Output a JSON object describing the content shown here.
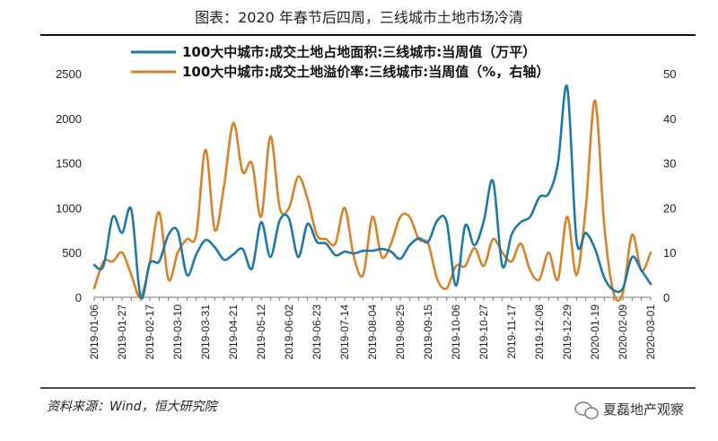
{
  "chart_data": {
    "type": "line",
    "title": "图表：2020 年春节后四周，三线城市土地市场冷清",
    "x": [
      "2019-01-06",
      "2019-01-13",
      "2019-01-20",
      "2019-01-27",
      "2019-02-03",
      "2019-02-10",
      "2019-02-17",
      "2019-02-24",
      "2019-03-03",
      "2019-03-10",
      "2019-03-17",
      "2019-03-24",
      "2019-03-31",
      "2019-04-07",
      "2019-04-14",
      "2019-04-21",
      "2019-04-28",
      "2019-05-05",
      "2019-05-12",
      "2019-05-19",
      "2019-05-26",
      "2019-06-02",
      "2019-06-09",
      "2019-06-16",
      "2019-06-23",
      "2019-06-30",
      "2019-07-07",
      "2019-07-14",
      "2019-07-21",
      "2019-07-28",
      "2019-08-04",
      "2019-08-11",
      "2019-08-18",
      "2019-08-25",
      "2019-09-01",
      "2019-09-08",
      "2019-09-15",
      "2019-09-22",
      "2019-09-29",
      "2019-10-06",
      "2019-10-13",
      "2019-10-20",
      "2019-10-27",
      "2019-11-03",
      "2019-11-10",
      "2019-11-17",
      "2019-11-24",
      "2019-12-01",
      "2019-12-08",
      "2019-12-15",
      "2019-12-22",
      "2019-12-29",
      "2020-01-05",
      "2020-01-12",
      "2020-01-19",
      "2020-01-26",
      "2020-02-02",
      "2020-02-09",
      "2020-02-16",
      "2020-02-23",
      "2020-03-01"
    ],
    "x_tick_labels": [
      "2019-01-06",
      "2019-01-27",
      "2019-02-17",
      "2019-03-10",
      "2019-03-31",
      "2019-04-21",
      "2019-05-12",
      "2019-06-02",
      "2019-06-23",
      "2019-07-14",
      "2019-08-04",
      "2019-08-25",
      "2019-09-15",
      "2019-10-06",
      "2019-10-27",
      "2019-11-17",
      "2019-12-08",
      "2019-12-29",
      "2020-01-19",
      "2020-02-09",
      "2020-03-01"
    ],
    "ylim_left": [
      0,
      2500
    ],
    "yticks_left": [
      "0",
      "500",
      "1000",
      "1500",
      "2000",
      "2500"
    ],
    "ylim_right": [
      0,
      50
    ],
    "yticks_right": [
      "0",
      "10",
      "20",
      "30",
      "40",
      "50"
    ],
    "grid": false,
    "legend_position": "top",
    "series": [
      {
        "name": "100大中城市:成交土地占地面积:三线城市:当周值（万平）",
        "axis": "left",
        "color": "#1f78a8",
        "values": [
          360,
          350,
          900,
          720,
          980,
          0,
          380,
          400,
          700,
          740,
          250,
          480,
          640,
          560,
          420,
          480,
          540,
          320,
          840,
          450,
          860,
          880,
          450,
          820,
          620,
          600,
          470,
          510,
          490,
          520,
          520,
          540,
          510,
          430,
          580,
          660,
          620,
          860,
          840,
          130,
          800,
          580,
          850,
          1300,
          350,
          700,
          840,
          900,
          1120,
          1160,
          1500,
          2350,
          640,
          720,
          540,
          220,
          80,
          100,
          450,
          300,
          150
        ]
      },
      {
        "name": "100大中城市:成交土地溢价率:三线城市:当周值（%，右轴）",
        "axis": "right",
        "color": "#d7832a",
        "values": [
          2,
          8,
          8,
          10,
          5,
          0,
          8,
          19,
          4,
          10,
          13,
          14,
          33,
          15,
          25,
          39,
          28,
          30,
          18,
          36,
          20,
          20,
          27,
          22,
          14,
          13,
          12,
          20,
          9,
          5,
          18,
          9,
          12,
          18,
          18,
          13,
          12,
          4,
          2,
          7,
          7,
          11,
          7,
          13,
          10,
          8,
          12,
          6,
          4,
          10,
          4,
          18,
          5,
          20,
          44,
          16,
          1,
          1,
          14,
          6,
          10
        ]
      }
    ],
    "source": "资料来源：Wind，恒大研究院"
  },
  "watermark": {
    "text": "夏磊地产观察",
    "icon": "wechat-icon"
  },
  "colors": {
    "left_series": "#1f78a8",
    "right_series": "#d7832a"
  }
}
